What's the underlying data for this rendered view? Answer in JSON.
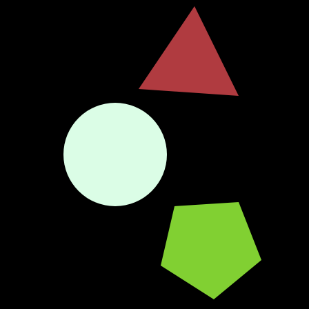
{
  "scene": {
    "background_color": "#000000",
    "shapes": [
      {
        "name": "red-triangle",
        "kind": "triangle",
        "color": "#b03b40"
      },
      {
        "name": "mint-circle",
        "kind": "circle",
        "color": "#dbfde6"
      },
      {
        "name": "green-pentagon",
        "kind": "pentagon",
        "color": "#81d032"
      }
    ]
  }
}
